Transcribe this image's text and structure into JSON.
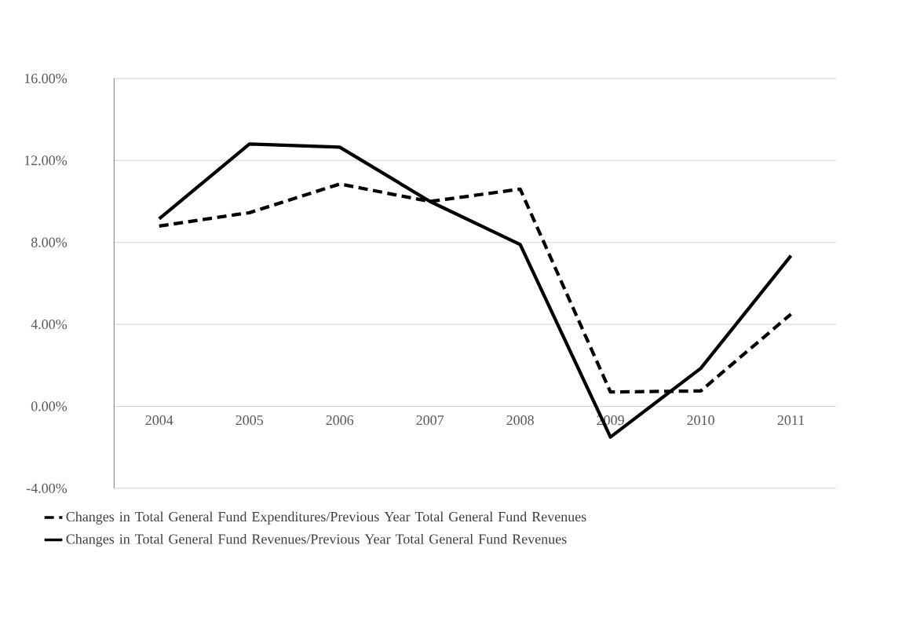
{
  "chart_data": {
    "type": "line",
    "categories": [
      "2004",
      "2005",
      "2006",
      "2007",
      "2008",
      "2009",
      "2010",
      "2011"
    ],
    "series": [
      {
        "name": "Changes in Total General Fund Expenditures/Previous Year Total General Fund Revenues",
        "color": "#000000",
        "line_style": "dashed",
        "values": [
          8.8,
          9.45,
          10.85,
          10.0,
          10.6,
          0.7,
          0.75,
          4.5
        ]
      },
      {
        "name": "Changes in Total General Fund Revenues/Previous Year Total General Fund Revenues",
        "color": "#000000",
        "line_style": "solid",
        "values": [
          9.15,
          12.8,
          12.65,
          10.0,
          7.9,
          -1.5,
          1.85,
          7.35
        ]
      }
    ],
    "ylim": [
      -4,
      16
    ],
    "yticks": [
      {
        "value": -4,
        "label": "-4.00%"
      },
      {
        "value": 0,
        "label": "0.00%"
      },
      {
        "value": 4,
        "label": "4.00%"
      },
      {
        "value": 8,
        "label": "8.00%"
      },
      {
        "value": 12,
        "label": "12.00%"
      },
      {
        "value": 16,
        "label": "16.00%"
      }
    ],
    "grid": "y",
    "legend": "bottom",
    "marker": "none"
  }
}
